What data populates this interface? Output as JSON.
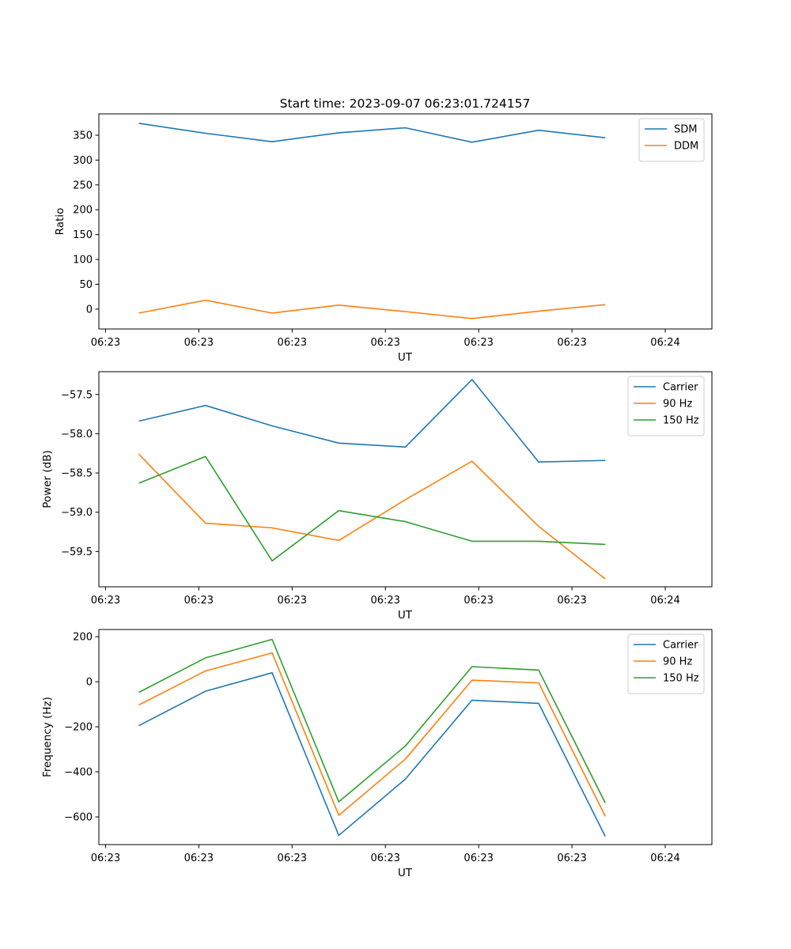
{
  "figure": {
    "title": "Start time: 2023-09-07 06:23:01.724157"
  },
  "chart_data": [
    {
      "type": "line",
      "xlabel": "UT",
      "ylabel": "Ratio",
      "x_ticks": [
        "06:23",
        "06:23",
        "06:23",
        "06:23",
        "06:23",
        "06:23",
        "06:24"
      ],
      "xlim": [
        -0.6,
        8.6
      ],
      "x": [
        0,
        1,
        2,
        3,
        4,
        5,
        6,
        7
      ],
      "yticks": [
        0,
        50,
        100,
        150,
        200,
        250,
        300,
        350
      ],
      "ylim": [
        -40,
        393
      ],
      "legend_position": "upper right",
      "series": [
        {
          "name": "SDM",
          "color": "#1f77b4",
          "values": [
            374,
            354,
            337,
            355,
            365,
            336,
            360,
            345
          ]
        },
        {
          "name": "DDM",
          "color": "#ff7f0e",
          "values": [
            -8,
            18,
            -8,
            8,
            -5,
            -19,
            -4,
            9
          ]
        }
      ]
    },
    {
      "type": "line",
      "xlabel": "UT",
      "ylabel": "Power (dB)",
      "x_ticks": [
        "06:23",
        "06:23",
        "06:23",
        "06:23",
        "06:23",
        "06:23",
        "06:24"
      ],
      "xlim": [
        -0.6,
        8.6
      ],
      "x": [
        0,
        1,
        2,
        3,
        4,
        5,
        6,
        7
      ],
      "yticks": [
        -59.5,
        -59.0,
        -58.5,
        -58.0,
        -57.5
      ],
      "ylim": [
        -59.95,
        -57.21
      ],
      "legend_position": "upper right",
      "series": [
        {
          "name": "Carrier",
          "color": "#1f77b4",
          "values": [
            -57.84,
            -57.64,
            -57.9,
            -58.12,
            -58.17,
            -57.31,
            -58.36,
            -58.34
          ]
        },
        {
          "name": "90 Hz",
          "color": "#ff7f0e",
          "values": [
            -58.26,
            -59.14,
            -59.2,
            -59.36,
            -58.84,
            -58.35,
            -59.18,
            -59.85
          ]
        },
        {
          "name": "150 Hz",
          "color": "#2ca02c",
          "values": [
            -58.63,
            -58.29,
            -59.62,
            -58.98,
            -59.12,
            -59.37,
            -59.37,
            -59.41
          ]
        }
      ]
    },
    {
      "type": "line",
      "xlabel": "UT",
      "ylabel": "Frequency (Hz)",
      "x_ticks": [
        "06:23",
        "06:23",
        "06:23",
        "06:23",
        "06:23",
        "06:23",
        "06:24"
      ],
      "xlim": [
        -0.6,
        8.6
      ],
      "x": [
        0,
        1,
        2,
        3,
        4,
        5,
        6,
        7
      ],
      "yticks": [
        -600,
        -400,
        -200,
        0,
        200
      ],
      "ylim": [
        -723,
        232
      ],
      "legend_position": "upper right",
      "series": [
        {
          "name": "Carrier",
          "color": "#1f77b4",
          "values": [
            -195,
            -42,
            40,
            -682,
            -432,
            -82,
            -96,
            -687
          ]
        },
        {
          "name": "90 Hz",
          "color": "#ff7f0e",
          "values": [
            -103,
            48,
            128,
            -593,
            -343,
            7,
            -5,
            -597
          ]
        },
        {
          "name": "150 Hz",
          "color": "#2ca02c",
          "values": [
            -47,
            106,
            188,
            -533,
            -285,
            67,
            52,
            -538
          ]
        }
      ]
    }
  ]
}
